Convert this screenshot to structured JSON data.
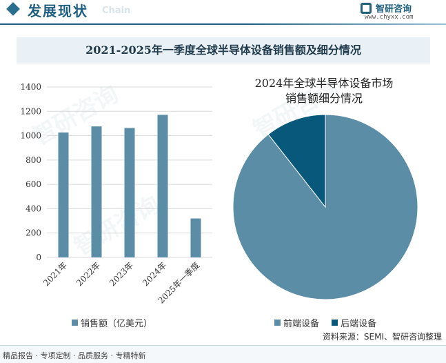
{
  "header": {
    "title": "发展现状",
    "subtitle_en": "Chain",
    "logo_name": "智研咨询",
    "logo_url": "www.chyxx.com"
  },
  "chart_title": "2021-2025年一季度全球半导体设备销售额及细分情况",
  "watermark_text": "智研咨询",
  "chart_data": [
    {
      "type": "bar",
      "categories": [
        "2021年",
        "2022年",
        "2023年",
        "2024年",
        "2025年一季度"
      ],
      "series": [
        {
          "name": "销售额（亿美元）",
          "values": [
            1026,
            1076,
            1063,
            1171,
            320
          ]
        }
      ],
      "yticks": [
        "0",
        "200",
        "400",
        "600",
        "800",
        "1000",
        "1200",
        "1400"
      ],
      "ylim": [
        0,
        1400
      ],
      "grid": true,
      "legend": "bottom",
      "color": "#5b8ea6"
    },
    {
      "type": "pie",
      "title": "2024年全球半导体设备市场销售额细分情况",
      "title_lines": [
        "2024年全球半导体设备市场",
        "销售额细分情况"
      ],
      "labels": [
        "前端设备",
        "后端设备"
      ],
      "values": [
        89.4,
        10.6
      ],
      "colors": [
        "#5b8ea6",
        "#07587a"
      ],
      "legend": "bottom"
    }
  ],
  "footer": {
    "services": "精品报告 · 专项定制 · 品质服务 · 专精特新",
    "source": "资料来源：SEMI、智研咨询整理"
  }
}
